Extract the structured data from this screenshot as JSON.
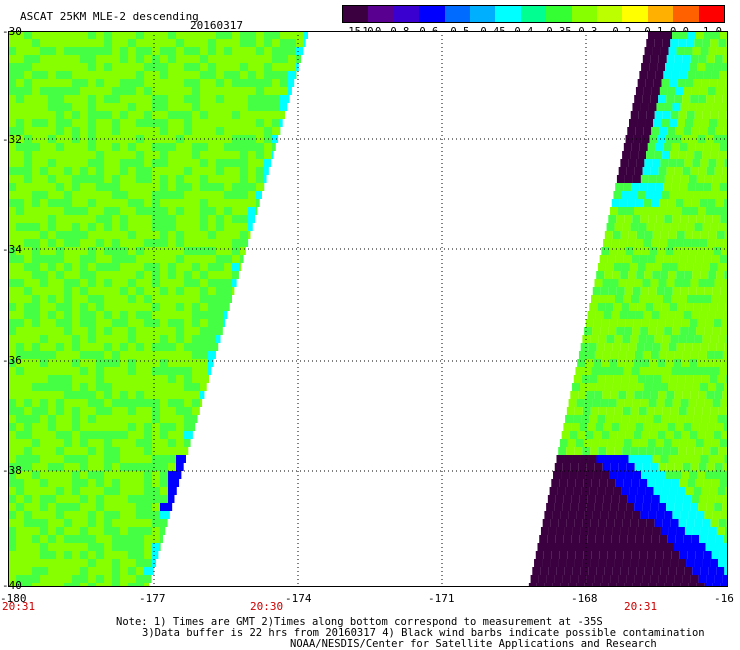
{
  "header": {
    "title": "ASCAT 25KM MLE-2 descending",
    "date": "20160317"
  },
  "colorbar": {
    "labels": [
      "-15.0",
      "-1.0",
      "-0.8",
      "-0.6",
      "-0.5",
      "-0.45",
      "-0.4",
      "-0.35",
      "-0.3",
      "-0.2",
      "-0.1",
      "0.0",
      "1.0"
    ],
    "colors": [
      "#3b0040",
      "#5a0090",
      "#3a00d0",
      "#0000ff",
      "#006cff",
      "#00b0ff",
      "#00ffff",
      "#00ff90",
      "#33ff33",
      "#88ff00",
      "#bbff00",
      "#ffff00",
      "#ffb000",
      "#ff6000",
      "#ff0000"
    ]
  },
  "map": {
    "y_labels": [
      "-30",
      "-32",
      "-34",
      "-36",
      "-38",
      "-40"
    ],
    "x_labels": [
      "-180",
      "-177",
      "-174",
      "-171",
      "-168",
      "-16"
    ],
    "times": [
      "20:31",
      "20:30",
      "20:31"
    ],
    "swath_colors": {
      "dominant": "#88ff00",
      "secondary": "#44ff44",
      "edge": "#00ffff",
      "low": "#0000ff",
      "lowest": "#3b0040"
    }
  },
  "notes": {
    "line1": "Note: 1) Times are GMT 2)Times along bottom correspond to measurement at -35S",
    "line2": "3)Data buffer is 22 hrs from 20160317 4) Black wind barbs indicate possible contamination",
    "line3": "NOAA/NESDIS/Center for Satellite Applications and Research"
  }
}
